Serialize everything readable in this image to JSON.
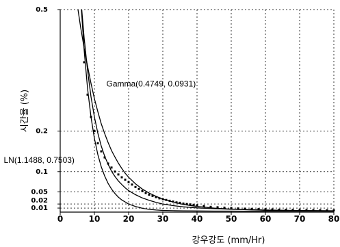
{
  "chart_data": {
    "type": "line",
    "title": "",
    "xlabel": "강우강도 (mm/Hr)",
    "ylabel": "시간율 (%)",
    "xlim": [
      0,
      80
    ],
    "ylim": [
      0,
      0.5
    ],
    "x_ticks": [
      "0",
      "10",
      "20",
      "30",
      "40",
      "50",
      "60",
      "70",
      "80"
    ],
    "y_ticks": [
      {
        "value": 0.5,
        "label": "0.5"
      },
      {
        "value": 0.2,
        "label": "0.2"
      },
      {
        "value": 0.1,
        "label": "0.1"
      },
      {
        "value": 0.05,
        "label": "0.05"
      },
      {
        "value": 0.02,
        "label": "0.02"
      },
      {
        "value": 0.01,
        "label": "0.01"
      }
    ],
    "grid": true,
    "annotations": [
      {
        "text": "Gamma(0.4749, 0.0931)",
        "x": 13.5,
        "y": 0.31
      },
      {
        "text": "LN(1.1488, 0.7503)",
        "x": -16.5,
        "y": 0.122
      }
    ],
    "series": [
      {
        "style": "markers",
        "x": [
          7,
          8,
          9,
          10,
          11,
          12,
          13,
          14,
          15,
          16,
          17,
          18,
          19,
          20,
          21,
          22,
          23,
          24,
          25,
          26,
          27,
          28,
          29,
          30,
          31,
          32,
          33,
          34,
          35,
          36,
          37,
          38,
          39,
          40,
          42,
          44,
          46,
          48,
          50,
          52,
          54,
          56,
          58,
          60,
          62,
          64,
          66,
          68,
          70,
          72,
          74,
          76,
          78,
          80
        ],
        "y": [
          0.37,
          0.29,
          0.235,
          0.2,
          0.17,
          0.15,
          0.135,
          0.12,
          0.11,
          0.1,
          0.093,
          0.086,
          0.08,
          0.074,
          0.068,
          0.062,
          0.057,
          0.052,
          0.047,
          0.043,
          0.04,
          0.037,
          0.034,
          0.032,
          0.03,
          0.028,
          0.026,
          0.024,
          0.023,
          0.021,
          0.02,
          0.019,
          0.018,
          0.017,
          0.015,
          0.013,
          0.012,
          0.011,
          0.01,
          0.009,
          0.0085,
          0.008,
          0.0075,
          0.007,
          0.0065,
          0.006,
          0.0058,
          0.0055,
          0.0052,
          0.005,
          0.0048,
          0.0046,
          0.0044,
          0.0042
        ]
      },
      {
        "style": "line",
        "x": [
          5.2,
          6,
          7,
          8,
          9,
          10,
          11,
          12,
          13,
          14,
          15,
          16,
          17,
          18,
          19,
          20,
          22,
          24,
          26,
          28,
          30,
          33,
          36,
          40,
          45,
          50,
          55,
          60,
          65,
          70,
          75,
          80
        ],
        "y": [
          0.5,
          0.455,
          0.405,
          0.36,
          0.318,
          0.28,
          0.248,
          0.218,
          0.194,
          0.172,
          0.152,
          0.136,
          0.121,
          0.108,
          0.096,
          0.086,
          0.07,
          0.057,
          0.047,
          0.039,
          0.032,
          0.025,
          0.019,
          0.014,
          0.01,
          0.0075,
          0.0058,
          0.0046,
          0.0038,
          0.0032,
          0.0028,
          0.0025
        ]
      },
      {
        "style": "line",
        "x": [
          6.3,
          7,
          8,
          9,
          10,
          11,
          12,
          13,
          14,
          15,
          16,
          17,
          18,
          19,
          20,
          22,
          24,
          26,
          28,
          30,
          33,
          36,
          40,
          45,
          50,
          55,
          60,
          65,
          70,
          75,
          80
        ],
        "y": [
          0.5,
          0.43,
          0.35,
          0.285,
          0.235,
          0.195,
          0.163,
          0.138,
          0.118,
          0.101,
          0.088,
          0.077,
          0.068,
          0.06,
          0.053,
          0.043,
          0.035,
          0.029,
          0.024,
          0.02,
          0.016,
          0.013,
          0.0105,
          0.0085,
          0.007,
          0.006,
          0.0052,
          0.0046,
          0.0041,
          0.0037,
          0.0034
        ]
      },
      {
        "style": "line",
        "x": [
          6.2,
          7,
          8,
          9,
          10,
          11,
          12,
          13,
          14,
          15,
          16,
          17,
          18,
          19,
          20,
          22,
          24,
          26,
          28,
          30,
          33,
          36,
          40,
          45,
          50,
          55,
          60,
          65,
          70,
          75,
          80
        ],
        "y": [
          0.5,
          0.4,
          0.305,
          0.235,
          0.182,
          0.142,
          0.112,
          0.089,
          0.071,
          0.057,
          0.046,
          0.037,
          0.03,
          0.025,
          0.02,
          0.014,
          0.0095,
          0.0068,
          0.0052,
          0.0042,
          0.0035,
          0.0031,
          0.0028,
          0.0026,
          0.0025,
          0.0024,
          0.0024,
          0.0023,
          0.0023,
          0.0023,
          0.0023
        ]
      }
    ]
  }
}
